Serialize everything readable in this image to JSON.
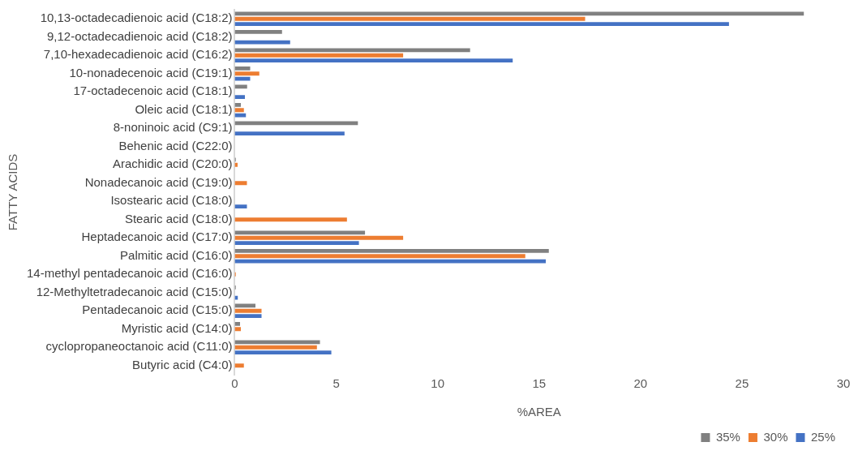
{
  "chart_data": {
    "type": "bar",
    "orientation": "horizontal",
    "xlabel": "%AREA",
    "ylabel": "FATTY ACIDS",
    "categories": [
      "10,13-octadecadienoic acid (C18:2)",
      "9,12-octadecadienoic acid (C18:2)",
      "7,10-hexadecadienoic acid (C16:2)",
      "10-nonadecenoic acid (C19:1)",
      "17-octadecenoic acid (C18:1)",
      "Oleic acid (C18:1)",
      "8-noninoic acid (C9:1)",
      "Behenic acid (C22:0)",
      "Arachidic acid (C20:0)",
      "Nonadecanoic acid (C19:0)",
      "Isostearic acid (C18:0)",
      "Stearic acid (C18:0)",
      "Heptadecanoic acid (C17:0)",
      "Palmitic acid (C16:0)",
      "14-methyl pentadecanoic acid (C16:0)",
      "12-Methyltetradecanoic acid (C15:0)",
      "Pentadecanoic acid (C15:0)",
      "Myristic acid (C14:0)",
      "cyclopropaneoctanoic acid (C11:0)",
      "Butyric acid (C4:0)"
    ],
    "series": [
      {
        "name": "35%",
        "color": "#808080",
        "values": [
          28.05,
          2.33,
          11.6,
          0.76,
          0.61,
          0.3,
          6.07,
          null,
          0.05,
          null,
          null,
          null,
          6.42,
          15.48,
          null,
          0.05,
          1.02,
          0.26,
          4.2,
          null
        ]
      },
      {
        "name": "30%",
        "color": "#ed7d31",
        "values": [
          17.27,
          null,
          8.3,
          1.21,
          null,
          0.45,
          null,
          null,
          0.14,
          0.6,
          null,
          5.53,
          8.3,
          14.32,
          0.05,
          null,
          1.32,
          0.3,
          4.05,
          0.45
        ]
      },
      {
        "name": "25%",
        "color": "#4472c4",
        "values": [
          24.36,
          2.73,
          13.7,
          0.76,
          0.5,
          0.55,
          5.41,
          null,
          null,
          null,
          0.6,
          null,
          6.12,
          15.33,
          null,
          0.15,
          1.32,
          null,
          4.76,
          null
        ]
      }
    ],
    "xlim": [
      0,
      30
    ],
    "xticks": [
      0,
      5,
      10,
      15,
      20,
      25,
      30
    ],
    "grid": false,
    "legend": "bottom right"
  }
}
